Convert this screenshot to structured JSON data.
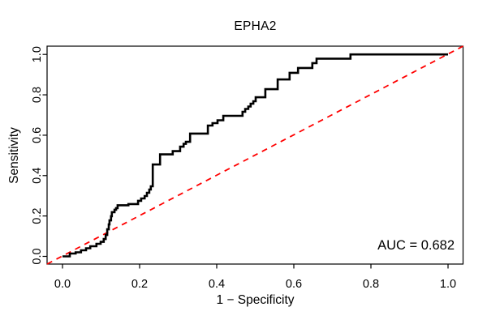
{
  "figure_background": "#ffffff",
  "chart_data": {
    "type": "line",
    "subtype": "roc_step_curve",
    "title": "EPHA2",
    "xlabel": "1 − Specificity",
    "ylabel": "Sensitivity",
    "xlim": [
      0,
      1
    ],
    "ylim": [
      0,
      1
    ],
    "grid": false,
    "legend": null,
    "xticks": [
      0.0,
      0.2,
      0.4,
      0.6,
      0.8,
      1.0
    ],
    "xtick_labels": [
      "0.0",
      "0.2",
      "0.4",
      "0.6",
      "0.8",
      "1.0"
    ],
    "yticks": [
      0.0,
      0.2,
      0.4,
      0.6,
      0.8,
      1.0
    ],
    "ytick_labels": [
      "0.0",
      "0.2",
      "0.4",
      "0.6",
      "0.8",
      "1.0"
    ],
    "frame_color": "#000000",
    "annotation": "AUC = 0.682",
    "auc": 0.682,
    "reference_line": {
      "from": [
        0,
        0
      ],
      "to": [
        1,
        1
      ],
      "color": "#ff0000",
      "style": "dashed"
    },
    "roc_series": {
      "name": "EPHA2 ROC curve",
      "color": "#000000",
      "points": [
        [
          0,
          0
        ],
        [
          0.019,
          0
        ],
        [
          0.019,
          0.014
        ],
        [
          0.034,
          0.014
        ],
        [
          0.034,
          0.02
        ],
        [
          0.048,
          0.02
        ],
        [
          0.048,
          0.03
        ],
        [
          0.061,
          0.03
        ],
        [
          0.061,
          0.04
        ],
        [
          0.072,
          0.04
        ],
        [
          0.072,
          0.05
        ],
        [
          0.088,
          0.05
        ],
        [
          0.088,
          0.062
        ],
        [
          0.099,
          0.062
        ],
        [
          0.099,
          0.072
        ],
        [
          0.107,
          0.072
        ],
        [
          0.107,
          0.086
        ],
        [
          0.112,
          0.086
        ],
        [
          0.112,
          0.106
        ],
        [
          0.116,
          0.106
        ],
        [
          0.116,
          0.134
        ],
        [
          0.12,
          0.134
        ],
        [
          0.12,
          0.158
        ],
        [
          0.122,
          0.158
        ],
        [
          0.122,
          0.178
        ],
        [
          0.126,
          0.178
        ],
        [
          0.126,
          0.199
        ],
        [
          0.128,
          0.199
        ],
        [
          0.128,
          0.219
        ],
        [
          0.135,
          0.219
        ],
        [
          0.135,
          0.231
        ],
        [
          0.139,
          0.231
        ],
        [
          0.139,
          0.239
        ],
        [
          0.143,
          0.239
        ],
        [
          0.143,
          0.253
        ],
        [
          0.171,
          0.253
        ],
        [
          0.171,
          0.259
        ],
        [
          0.196,
          0.259
        ],
        [
          0.196,
          0.275
        ],
        [
          0.204,
          0.275
        ],
        [
          0.204,
          0.287
        ],
        [
          0.213,
          0.287
        ],
        [
          0.213,
          0.299
        ],
        [
          0.219,
          0.299
        ],
        [
          0.219,
          0.315
        ],
        [
          0.225,
          0.315
        ],
        [
          0.225,
          0.331
        ],
        [
          0.229,
          0.331
        ],
        [
          0.229,
          0.347
        ],
        [
          0.234,
          0.347
        ],
        [
          0.234,
          0.455
        ],
        [
          0.253,
          0.455
        ],
        [
          0.253,
          0.505
        ],
        [
          0.286,
          0.505
        ],
        [
          0.286,
          0.521
        ],
        [
          0.305,
          0.521
        ],
        [
          0.305,
          0.543
        ],
        [
          0.314,
          0.543
        ],
        [
          0.314,
          0.557
        ],
        [
          0.32,
          0.557
        ],
        [
          0.32,
          0.567
        ],
        [
          0.331,
          0.567
        ],
        [
          0.331,
          0.608
        ],
        [
          0.377,
          0.608
        ],
        [
          0.377,
          0.648
        ],
        [
          0.389,
          0.648
        ],
        [
          0.389,
          0.66
        ],
        [
          0.402,
          0.66
        ],
        [
          0.402,
          0.674
        ],
        [
          0.417,
          0.674
        ],
        [
          0.417,
          0.696
        ],
        [
          0.467,
          0.696
        ],
        [
          0.467,
          0.716
        ],
        [
          0.474,
          0.716
        ],
        [
          0.474,
          0.73
        ],
        [
          0.482,
          0.73
        ],
        [
          0.482,
          0.742
        ],
        [
          0.488,
          0.742
        ],
        [
          0.488,
          0.756
        ],
        [
          0.495,
          0.756
        ],
        [
          0.495,
          0.768
        ],
        [
          0.501,
          0.768
        ],
        [
          0.501,
          0.788
        ],
        [
          0.526,
          0.788
        ],
        [
          0.526,
          0.828
        ],
        [
          0.558,
          0.828
        ],
        [
          0.558,
          0.876
        ],
        [
          0.589,
          0.876
        ],
        [
          0.589,
          0.909
        ],
        [
          0.611,
          0.909
        ],
        [
          0.611,
          0.933
        ],
        [
          0.648,
          0.933
        ],
        [
          0.648,
          0.957
        ],
        [
          0.659,
          0.957
        ],
        [
          0.659,
          0.979
        ],
        [
          0.747,
          0.979
        ],
        [
          0.747,
          1
        ],
        [
          1,
          1
        ]
      ]
    }
  }
}
